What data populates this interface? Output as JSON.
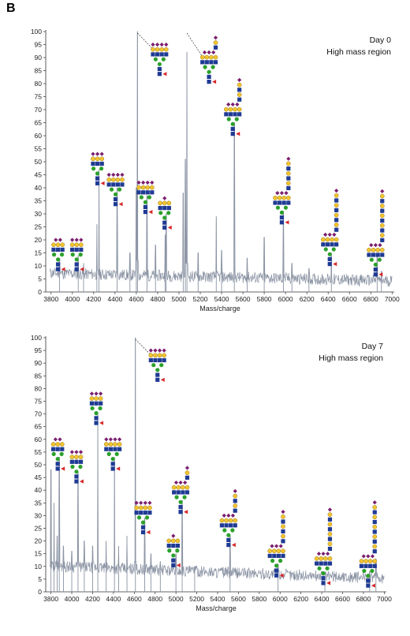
{
  "panel_label": "B",
  "colors": {
    "trace": "#8a93a3",
    "mannose": "#2ca02c",
    "galactose": "#f4c430",
    "glcnac": "#1f3a93",
    "fucose": "#d62728",
    "sialic": "#7b1f6f",
    "axis": "#333333"
  },
  "chart_data": [
    {
      "type": "line",
      "annotation_lines": [
        "Day 0",
        "High mass region"
      ],
      "xlabel": "Mass/charge",
      "xlim": [
        3750,
        7020
      ],
      "ylim": [
        0,
        100
      ],
      "xticks": [
        3800,
        4000,
        4200,
        4400,
        4600,
        4800,
        5000,
        5200,
        5400,
        5600,
        5800,
        6000,
        6200,
        6400,
        6600,
        6800,
        7000
      ],
      "yticks": [
        0,
        5,
        10,
        15,
        20,
        25,
        30,
        35,
        40,
        45,
        50,
        55,
        60,
        65,
        70,
        75,
        80,
        85,
        90,
        95,
        100
      ],
      "peaks": [
        {
          "x": 3880,
          "y": 13
        },
        {
          "x": 4055,
          "y": 14
        },
        {
          "x": 4105,
          "y": 11
        },
        {
          "x": 4230,
          "y": 26
        },
        {
          "x": 4250,
          "y": 47
        },
        {
          "x": 4420,
          "y": 40
        },
        {
          "x": 4540,
          "y": 15
        },
        {
          "x": 4600,
          "y": 40
        },
        {
          "x": 4611,
          "y": 100
        },
        {
          "x": 4700,
          "y": 37
        },
        {
          "x": 4780,
          "y": 18
        },
        {
          "x": 4870,
          "y": 22
        },
        {
          "x": 4880,
          "y": 30
        },
        {
          "x": 5040,
          "y": 38
        },
        {
          "x": 5060,
          "y": 51
        },
        {
          "x": 5075,
          "y": 92
        },
        {
          "x": 5180,
          "y": 15
        },
        {
          "x": 5350,
          "y": 29
        },
        {
          "x": 5400,
          "y": 16
        },
        {
          "x": 5520,
          "y": 65
        },
        {
          "x": 5640,
          "y": 13
        },
        {
          "x": 5800,
          "y": 21
        },
        {
          "x": 5980,
          "y": 31
        },
        {
          "x": 6060,
          "y": 11
        },
        {
          "x": 6220,
          "y": 9
        },
        {
          "x": 6430,
          "y": 15
        },
        {
          "x": 6860,
          "y": 14
        },
        {
          "x": 6900,
          "y": 8
        }
      ],
      "glycans": [
        {
          "x": 3880,
          "y": 20,
          "antennae": 3,
          "lacnac": 1,
          "sialic": 2
        },
        {
          "x": 4055,
          "y": 20,
          "antennae": 3,
          "lacnac": 1,
          "sialic": 3
        },
        {
          "x": 4250,
          "y": 53,
          "antennae": 3,
          "lacnac": 1,
          "sialic": 3
        },
        {
          "x": 4420,
          "y": 45,
          "antennae": 4,
          "lacnac": 1,
          "sialic": 4
        },
        {
          "x": 4700,
          "y": 42,
          "antennae": 4,
          "lacnac": 1,
          "sialic": 4
        },
        {
          "x": 4880,
          "y": 36,
          "antennae": 3,
          "lacnac": 1,
          "sialic": 1
        },
        {
          "x": 4611,
          "y": 95,
          "antennae": 4,
          "lacnac": 1,
          "sialic": 4,
          "leader_to_peak": true
        },
        {
          "x": 5075,
          "y": 92,
          "antennae": 4,
          "lacnac": 2,
          "sialic": 3,
          "leader_to_peak": true
        },
        {
          "x": 5520,
          "y": 72,
          "antennae": 4,
          "lacnac": 3,
          "sialic": 3
        },
        {
          "x": 5980,
          "y": 38,
          "antennae": 4,
          "lacnac": 4,
          "sialic": 3
        },
        {
          "x": 6430,
          "y": 22,
          "antennae": 4,
          "lacnac": 5,
          "sialic": 3
        },
        {
          "x": 6860,
          "y": 18,
          "antennae": 4,
          "lacnac": 6,
          "sialic": 3
        }
      ]
    },
    {
      "type": "line",
      "annotation_lines": [
        "Day 7",
        "High mass region"
      ],
      "xlabel": "Mass/charge",
      "xlim": [
        3750,
        7020
      ],
      "ylim": [
        0,
        100
      ],
      "xticks": [
        3800,
        4000,
        4200,
        4400,
        4600,
        4800,
        5000,
        5200,
        5400,
        5600,
        5800,
        6000,
        6200,
        6400,
        6600,
        6800,
        7000
      ],
      "yticks": [
        0,
        5,
        10,
        15,
        20,
        25,
        30,
        35,
        40,
        45,
        50,
        55,
        60,
        65,
        70,
        75,
        80,
        85,
        90,
        95,
        100
      ],
      "peaks": [
        {
          "x": 3800,
          "y": 48
        },
        {
          "x": 3830,
          "y": 35
        },
        {
          "x": 3860,
          "y": 22
        },
        {
          "x": 3880,
          "y": 53
        },
        {
          "x": 3920,
          "y": 18
        },
        {
          "x": 4000,
          "y": 16
        },
        {
          "x": 4060,
          "y": 47
        },
        {
          "x": 4120,
          "y": 20
        },
        {
          "x": 4200,
          "y": 18
        },
        {
          "x": 4250,
          "y": 70
        },
        {
          "x": 4330,
          "y": 20
        },
        {
          "x": 4410,
          "y": 53
        },
        {
          "x": 4450,
          "y": 18
        },
        {
          "x": 4530,
          "y": 22
        },
        {
          "x": 4611,
          "y": 100
        },
        {
          "x": 4700,
          "y": 29
        },
        {
          "x": 4760,
          "y": 15
        },
        {
          "x": 4850,
          "y": 12
        },
        {
          "x": 5000,
          "y": 15
        },
        {
          "x": 5060,
          "y": 36
        },
        {
          "x": 5180,
          "y": 10
        },
        {
          "x": 5520,
          "y": 22
        },
        {
          "x": 5980,
          "y": 11
        },
        {
          "x": 6430,
          "y": 6
        },
        {
          "x": 6860,
          "y": 8
        },
        {
          "x": 6920,
          "y": 13
        }
      ],
      "glycans": [
        {
          "x": 3880,
          "y": 60,
          "antennae": 3,
          "lacnac": 1,
          "sialic": 2
        },
        {
          "x": 4060,
          "y": 55,
          "antennae": 3,
          "lacnac": 1,
          "sialic": 3
        },
        {
          "x": 4250,
          "y": 78,
          "antennae": 3,
          "lacnac": 1,
          "sialic": 3
        },
        {
          "x": 4410,
          "y": 60,
          "antennae": 4,
          "lacnac": 1,
          "sialic": 4
        },
        {
          "x": 4611,
          "y": 95,
          "antennae": 4,
          "lacnac": 1,
          "sialic": 4,
          "leader_to_peak": true
        },
        {
          "x": 4700,
          "y": 35,
          "antennae": 4,
          "lacnac": 1,
          "sialic": 4
        },
        {
          "x": 4990,
          "y": 22,
          "antennae": 3,
          "lacnac": 1,
          "sialic": 1
        },
        {
          "x": 5060,
          "y": 43,
          "antennae": 4,
          "lacnac": 2,
          "sialic": 3
        },
        {
          "x": 5520,
          "y": 30,
          "antennae": 4,
          "lacnac": 3,
          "sialic": 3
        },
        {
          "x": 5980,
          "y": 18,
          "antennae": 4,
          "lacnac": 4,
          "sialic": 3
        },
        {
          "x": 6430,
          "y": 15,
          "antennae": 4,
          "lacnac": 5,
          "sialic": 3
        },
        {
          "x": 6860,
          "y": 14,
          "antennae": 4,
          "lacnac": 6,
          "sialic": 3
        }
      ]
    }
  ]
}
